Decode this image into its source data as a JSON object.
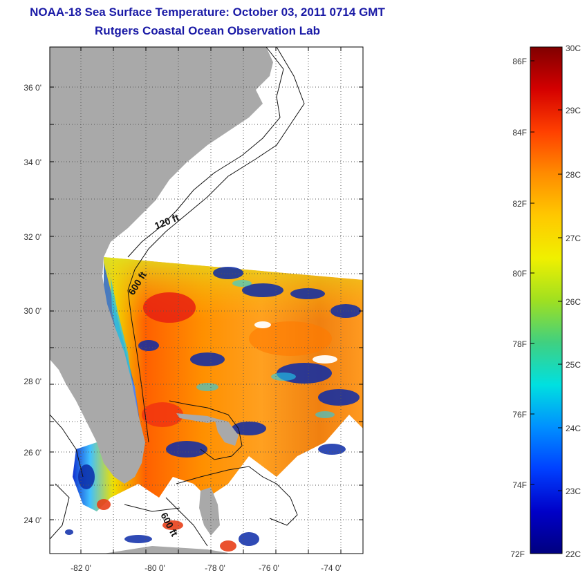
{
  "header": {
    "title": "NOAA-18 Sea Surface Temperature:  October 03, 2011 0714 GMT",
    "subtitle": "Rutgers Coastal Ocean Observation Lab"
  },
  "map": {
    "x_ticks": [
      "-82 0'",
      "-80 0'",
      "-78 0'",
      "-76 0'",
      "-74 0'"
    ],
    "y_ticks": [
      "36 0'",
      "34 0'",
      "32 0'",
      "30 0'",
      "28 0'",
      "26 0'",
      "24 0'"
    ],
    "contour_labels": [
      "120 ft",
      "600 ft",
      "600 ft"
    ],
    "colors": {
      "land": "#a9a9a9",
      "no_data": "#ffffff",
      "grid": "#555555"
    }
  },
  "colorbar": {
    "fahrenheit_labels": [
      "86F",
      "84F",
      "82F",
      "80F",
      "78F",
      "76F",
      "74F",
      "72F"
    ],
    "celsius_labels": [
      "30C",
      "29C",
      "28C",
      "27C",
      "26C",
      "25C",
      "24C",
      "23C",
      "22C"
    ],
    "stops": [
      "#800000",
      "#d40000",
      "#ff4000",
      "#ff8c00",
      "#ffc800",
      "#f0f000",
      "#a0e020",
      "#40d080",
      "#00e0e0",
      "#0090ff",
      "#0040ff",
      "#0000c8",
      "#00007f"
    ]
  }
}
